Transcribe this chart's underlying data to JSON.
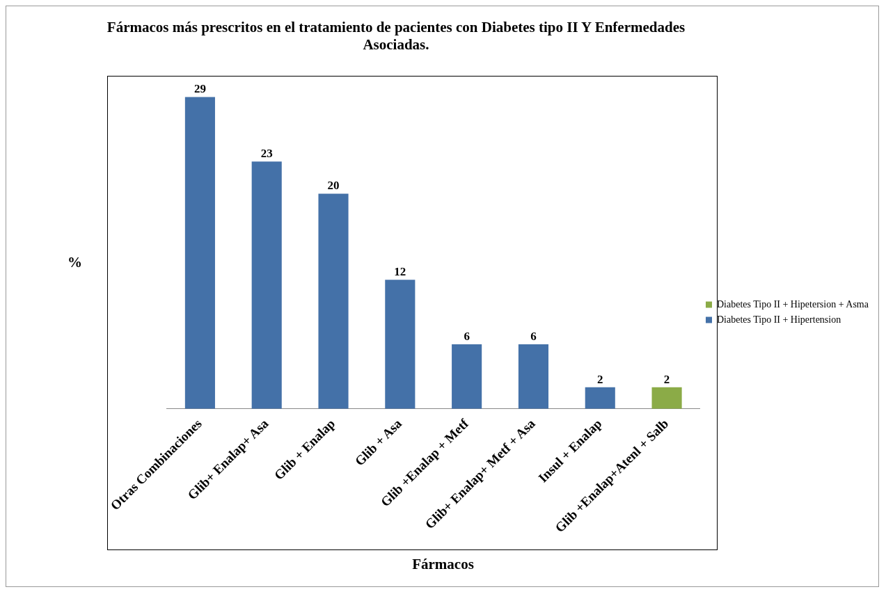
{
  "chart_data": {
    "type": "bar",
    "title": "Fármacos más prescritos en el tratamiento de pacientes con Diabetes tipo II Y Enfermedades Asociadas.",
    "xlabel": "Fármacos",
    "ylabel": "%",
    "categories": [
      "Otras Combinaciones",
      "Glib+ Enalap+ Asa",
      "Glib + Enalap",
      "Glib + Asa",
      "Glib +Enalap + Metf",
      "Glib+ Enalap+ Metf + Asa",
      "Insul + Enalap",
      "Glib +Enalap+Atenl + Salb"
    ],
    "series": [
      {
        "name": "Diabetes Tipo II + Hipetersion + Asma",
        "color": "#8bab47",
        "values": [
          null,
          null,
          null,
          null,
          null,
          null,
          null,
          2
        ]
      },
      {
        "name": "Diabetes Tipo II + Hipertension",
        "color": "#4471a8",
        "values": [
          29,
          23,
          20,
          12,
          6,
          6,
          2,
          null
        ]
      }
    ],
    "stacked": true,
    "data_labels": true,
    "grid": false,
    "legend": "right",
    "tick_labels": "x"
  }
}
